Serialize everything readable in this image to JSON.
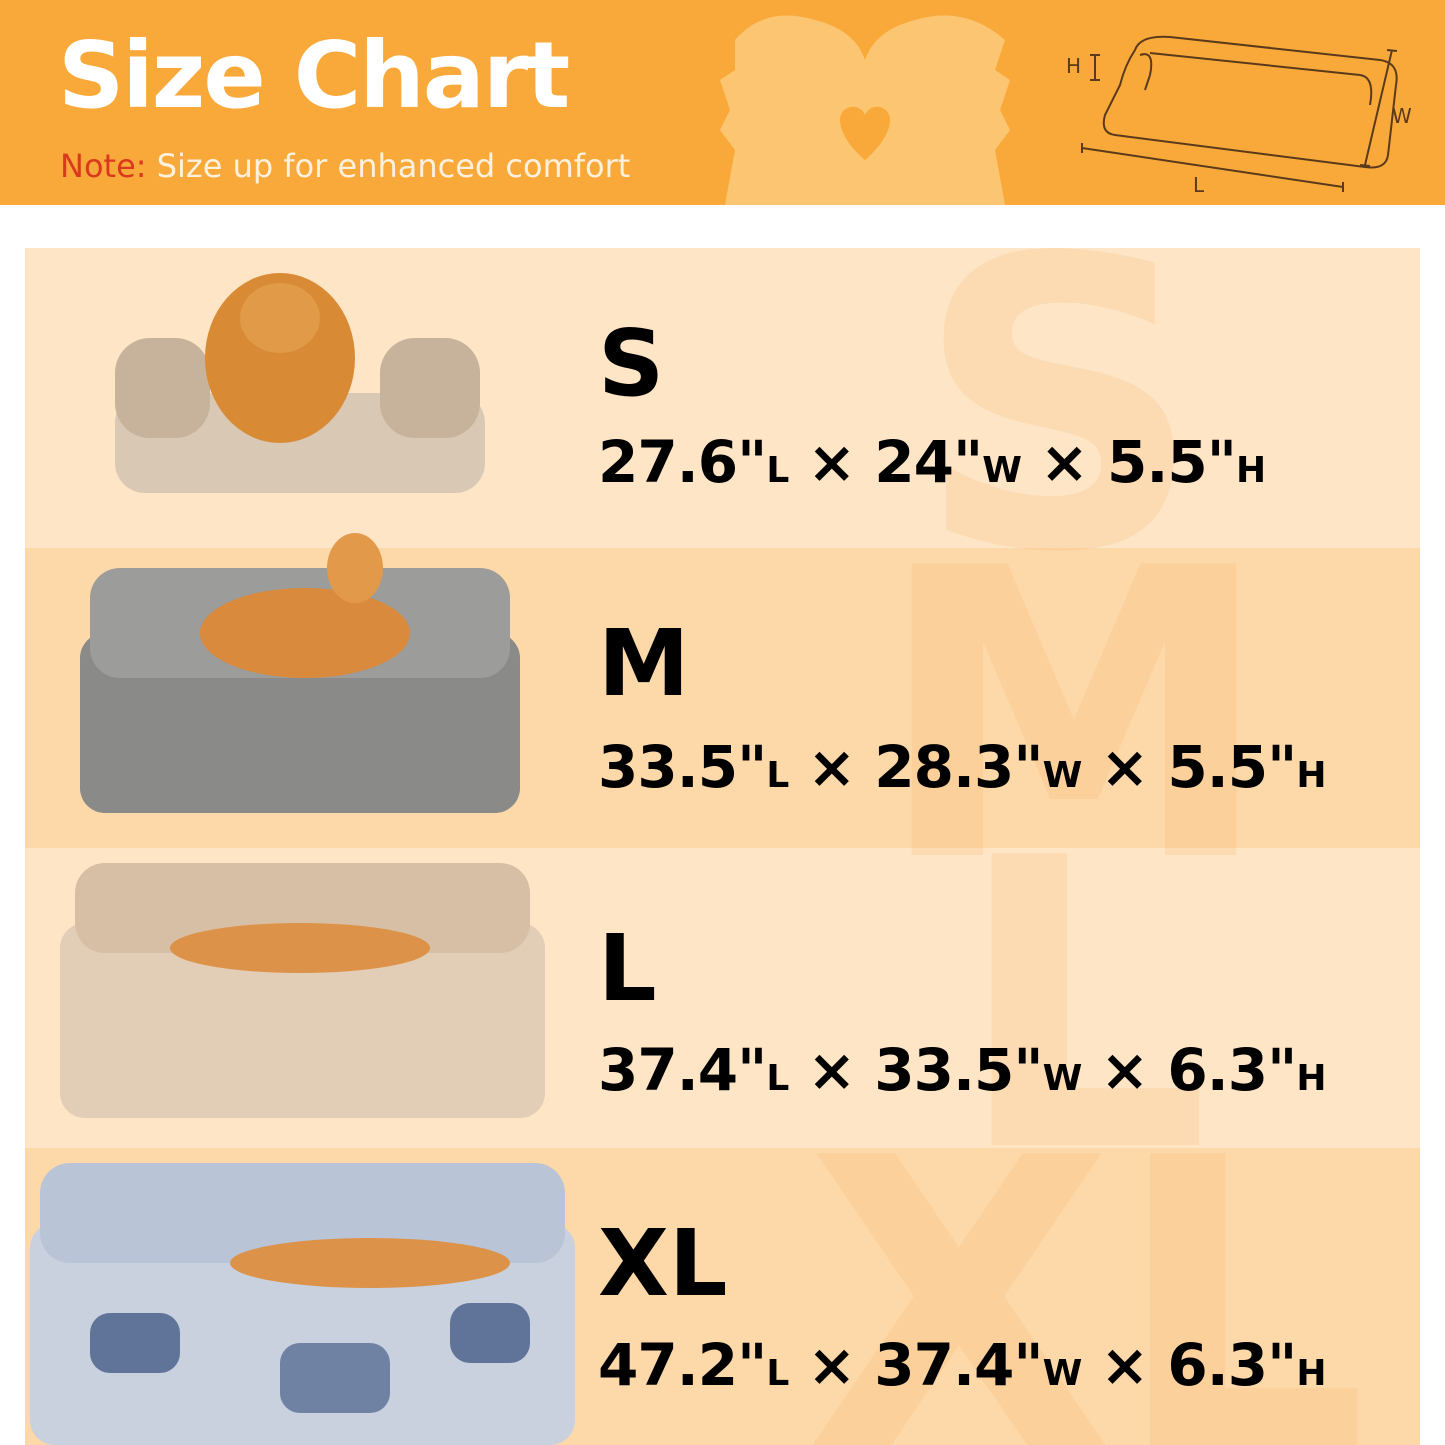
{
  "header": {
    "title": "Size Chart",
    "note_label": "Note:",
    "note_text": "Size up for enhanced comfort",
    "diagram_labels": {
      "h": "H",
      "w": "W",
      "l": "L"
    },
    "colors": {
      "banner": "#f9a93a",
      "note_label": "#d93a1e"
    }
  },
  "sizes": [
    {
      "size": "S",
      "l": "27.6\"",
      "l_unit": "L",
      "w": "24\"",
      "w_unit": "W",
      "h": "5.5\"",
      "h_unit": "H",
      "sep": "×",
      "bed_color": "#d9c8b4",
      "image": "pomeranian-on-beige-sofa-bed"
    },
    {
      "size": "M",
      "l": "33.5\"",
      "l_unit": "L",
      "w": "28.3\"",
      "w_unit": "W",
      "h": "5.5\"",
      "h_unit": "H",
      "sep": "×",
      "bed_color": "#8a8a88",
      "image": "shiba-on-grey-sofa-bed"
    },
    {
      "size": "L",
      "l": "37.4\"",
      "l_unit": "L",
      "w": "33.5\"",
      "w_unit": "W",
      "h": "6.3\"",
      "h_unit": "H",
      "sep": "×",
      "bed_color": "#e2cdb6",
      "image": "shiba-on-tan-sofa-bed"
    },
    {
      "size": "XL",
      "l": "47.2\"",
      "l_unit": "L",
      "w": "37.4\"",
      "w_unit": "W",
      "h": "6.3\"",
      "h_unit": "H",
      "sep": "×",
      "bed_color": "#b9c4d6",
      "image": "shiba-on-blue-tie-dye-sofa-bed"
    }
  ]
}
